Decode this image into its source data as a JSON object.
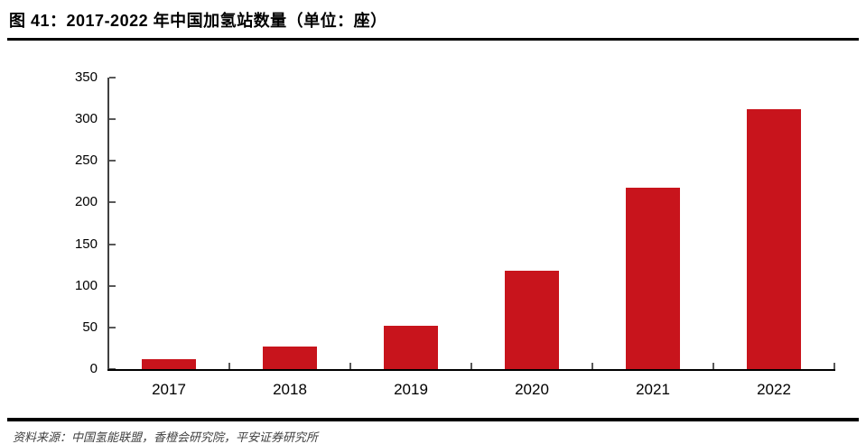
{
  "header": {
    "figure_label": "图 41：2017-2022 年中国加氢站数量（单位：座）"
  },
  "chart_data": {
    "type": "bar",
    "title": "2017-2022 年中国加氢站数量",
    "unit": "座",
    "categories": [
      "2017",
      "2018",
      "2019",
      "2020",
      "2021",
      "2022"
    ],
    "values": [
      12,
      27,
      52,
      118,
      218,
      312
    ],
    "xlabel": "",
    "ylabel": "",
    "ylim": [
      0,
      350
    ],
    "yticks": [
      0,
      50,
      100,
      150,
      200,
      250,
      300,
      350
    ],
    "grid": false,
    "legend": "none",
    "bar_color": "#C8141C",
    "axis_line_color": "#404040",
    "baseline_color": "#000000",
    "tick_color": "#595959",
    "label_color": "#000000"
  },
  "footer": {
    "source_text": "资料来源：中国氢能联盟，香橙会研究院，平安证券研究所"
  }
}
